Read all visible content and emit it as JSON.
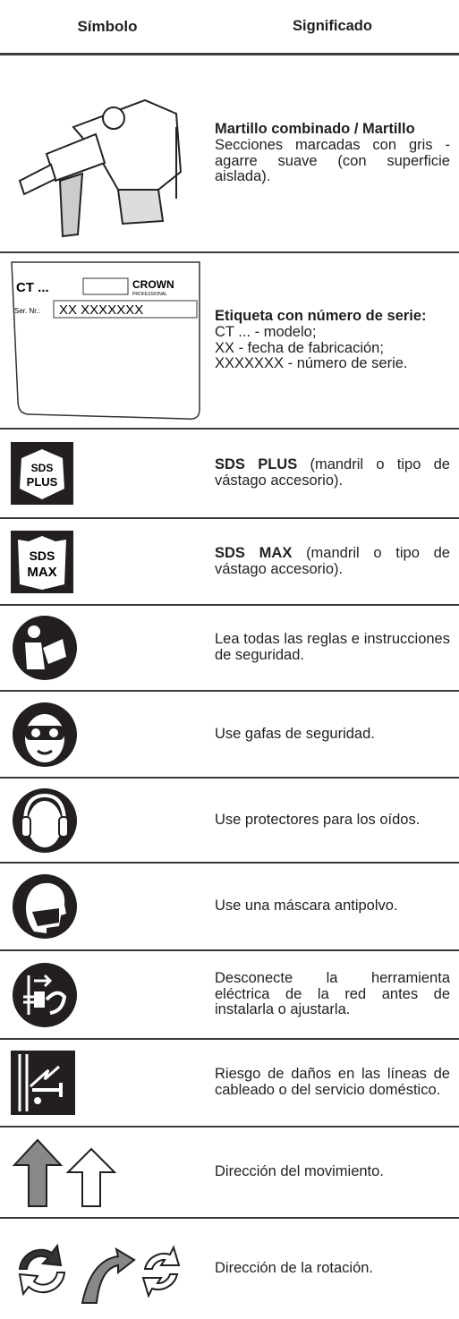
{
  "header": {
    "symbol": "Símbolo",
    "meaning": "Significado"
  },
  "rows": [
    {
      "bold": "Martillo combinado / Martillo",
      "lines": [
        "Secciones marcadas con gris - agarre suave (con superficie aislada)."
      ]
    },
    {
      "icon_text": {
        "model": "CT ...",
        "brand": "CROWN",
        "brand_sub": "PROFESSIONAL",
        "serial_label": "Ser. Nr.:",
        "serial": "XX XXXXXXX"
      },
      "bold": "Etiqueta con número de serie:",
      "lines": [
        "CT ... - modelo;",
        "XX - fecha de fabricación;",
        "XXXXXXX - número de serie."
      ]
    },
    {
      "icon_text": {
        "top": "SDS",
        "bottom": "PLUS"
      },
      "bold": "SDS PLUS",
      "text": "(mandril o tipo de vástago accesorio)."
    },
    {
      "icon_text": {
        "top": "SDS",
        "bottom": "MAX"
      },
      "bold": "SDS MAX",
      "text": "(mandril o tipo de vástago accesorio)."
    },
    {
      "text": "Lea todas las reglas e instrucciones de seguridad."
    },
    {
      "text": "Use gafas de seguridad."
    },
    {
      "text": "Use protectores para los oídos."
    },
    {
      "text": "Use una máscara antipolvo."
    },
    {
      "text": "Desconecte la herramienta eléctrica de la red antes de instalarla o ajustarla."
    },
    {
      "text": "Riesgo de daños en las líneas de cableado o del servicio doméstico."
    },
    {
      "text": "Dirección del movimiento."
    },
    {
      "text": "Dirección de la rotación."
    }
  ]
}
